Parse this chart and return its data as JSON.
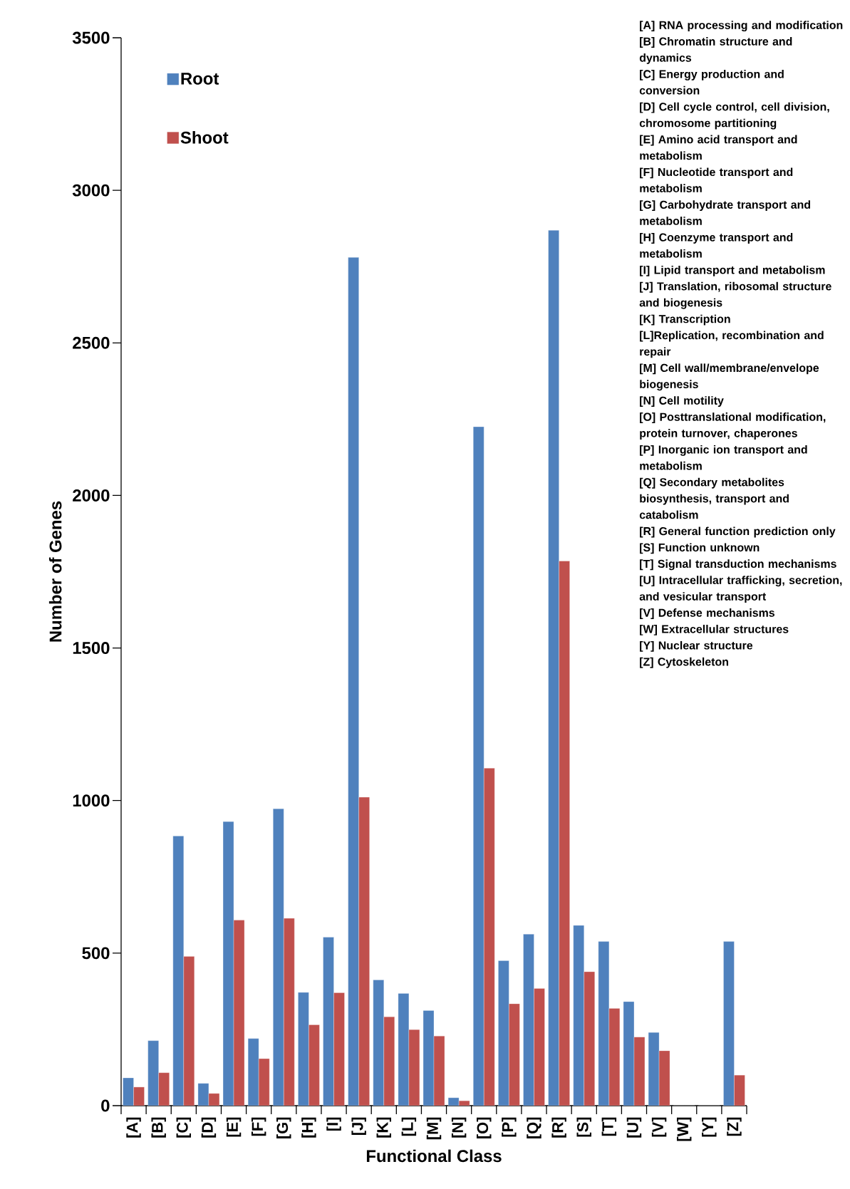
{
  "chart_data": {
    "type": "bar",
    "xlabel": "Functional Class",
    "ylabel": "Number of Genes",
    "categories": [
      "[A]",
      "[B]",
      "[C]",
      "[D]",
      "[E]",
      "[F]",
      "[G]",
      "[H]",
      "[I]",
      "[J]",
      "[K]",
      "[L]",
      "[M]",
      "[N]",
      "[O]",
      "[P]",
      "[Q]",
      "[R]",
      "[S]",
      "[T]",
      "[U]",
      "[V]",
      "[W]",
      "[Y]",
      "[Z]"
    ],
    "series": [
      {
        "name": "Root",
        "color": "#4f81bd",
        "values": [
          91,
          213,
          884,
          73,
          931,
          220,
          973,
          371,
          552,
          2780,
          412,
          368,
          312,
          26,
          2225,
          475,
          562,
          2869,
          591,
          538,
          341,
          240,
          0,
          0,
          538
        ]
      },
      {
        "name": "Shoot",
        "color": "#c0504d",
        "values": [
          61,
          108,
          489,
          40,
          608,
          154,
          614,
          265,
          370,
          1011,
          291,
          249,
          228,
          16,
          1106,
          334,
          384,
          1785,
          439,
          319,
          225,
          180,
          0,
          0,
          100
        ]
      }
    ],
    "ylim": [
      0,
      3500
    ],
    "yticks": [
      0,
      500,
      1000,
      1500,
      2000,
      2500,
      3000,
      3500
    ],
    "grid": false,
    "legend": "top left",
    "annotations": [
      "[A]  RNA processing and modification",
      "[B]  Chromatin structure and dynamics",
      "[C]  Energy production and conversion",
      "[D]  Cell cycle control, cell division, chromosome partitioning",
      "[E]  Amino acid transport and metabolism",
      "[F]  Nucleotide transport and metabolism",
      "[G]  Carbohydrate transport and metabolism",
      "[H]  Coenzyme transport and metabolism",
      "[I]  Lipid transport and metabolism",
      "[J]  Translation, ribosomal structure and biogenesis",
      "[K]  Transcription",
      "[L]Replication, recombination and repair",
      "[M] Cell wall/membrane/envelope biogenesis",
      "[N]  Cell motility",
      "[O]  Posttranslational modification, protein turnover, chaperones",
      "[P]  Inorganic ion transport and metabolism",
      "[Q]  Secondary metabolites biosynthesis, transport and catabolism",
      "[R]  General function prediction only",
      "[S]  Function unknown",
      "[T]  Signal transduction mechanisms",
      "[U]  Intracellular trafficking, secretion, and vesicular transport",
      "[V]  Defense mechanisms",
      "[W] Extracellular structures",
      "[Y]  Nuclear structure",
      "[Z]  Cytoskeleton"
    ]
  }
}
